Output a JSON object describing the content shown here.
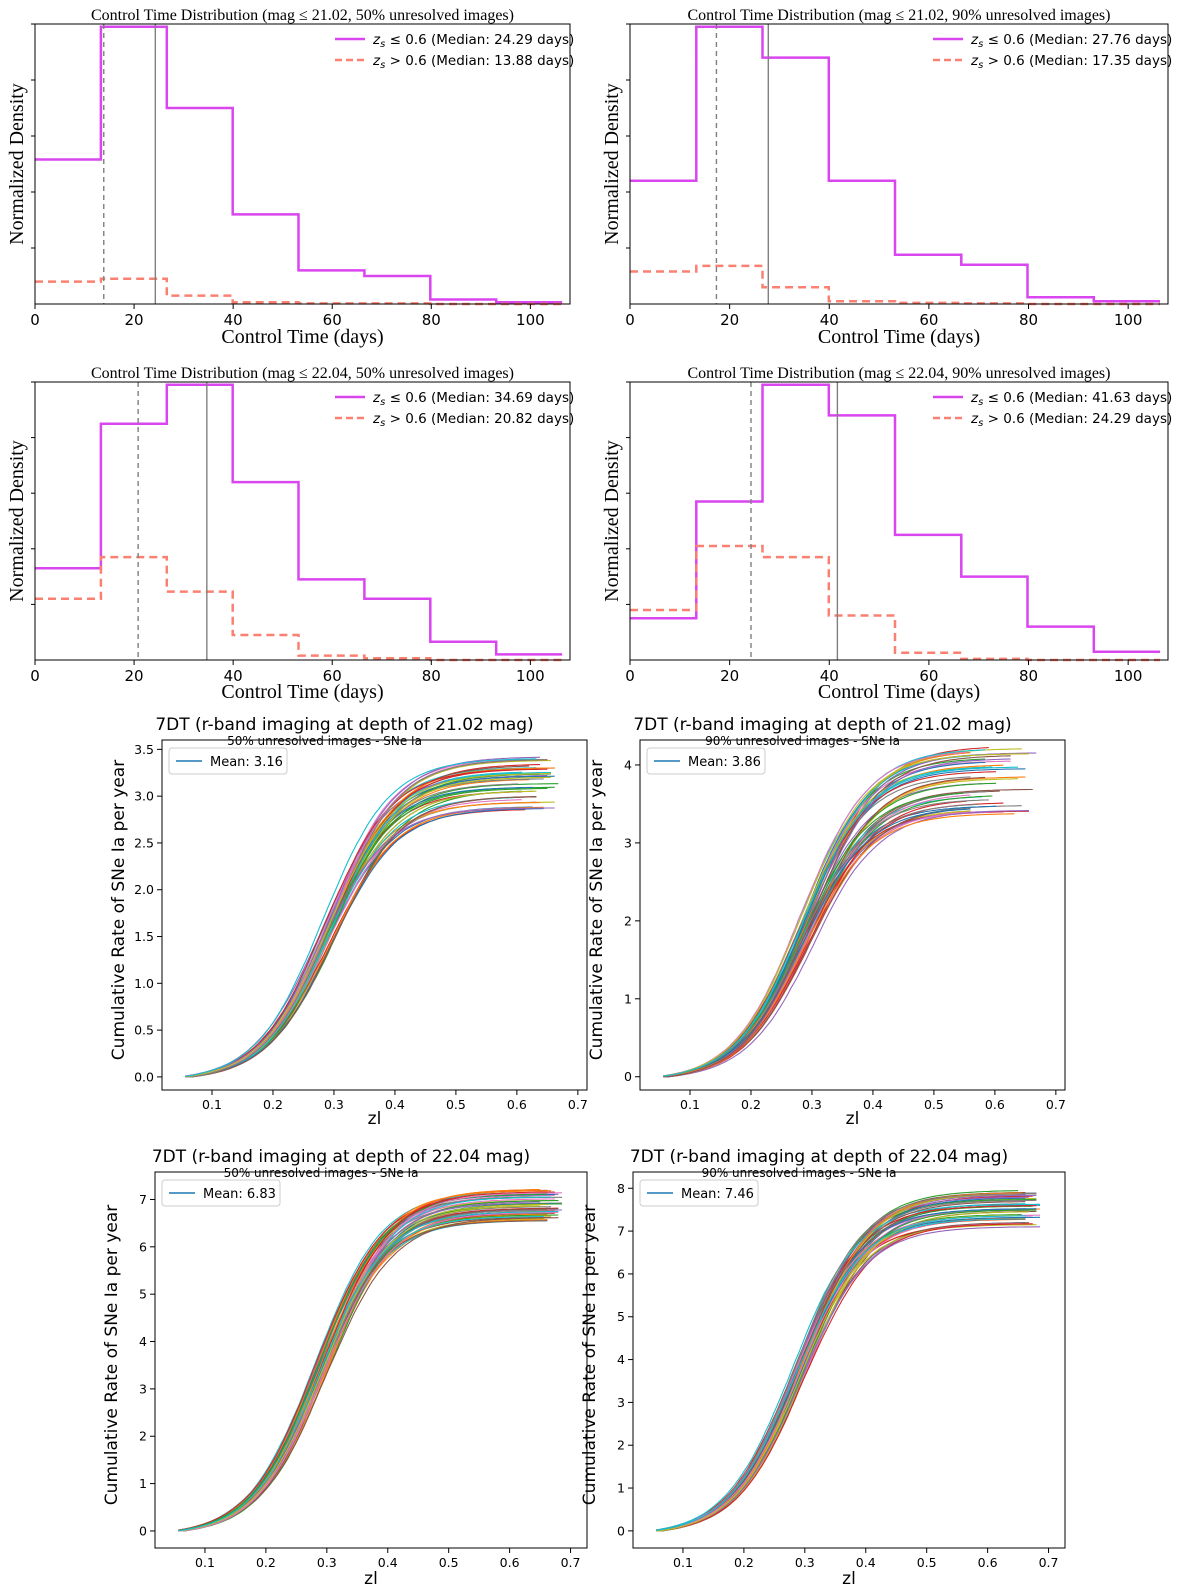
{
  "chart_data": [
    {
      "type": "step-histogram",
      "title": "Control Time Distribution (mag ≤ 21.02, 50% unresolved images)",
      "xlabel": "Control Time (days)",
      "ylabel": "Normalized Density",
      "xlim": [
        0,
        108
      ],
      "ylim": [
        0,
        0.05
      ],
      "xticks": [
        "0",
        "20",
        "40",
        "60",
        "80",
        "100"
      ],
      "bin_edges": [
        0,
        13.3,
        26.6,
        39.9,
        53.2,
        66.5,
        79.8,
        93.1,
        106.4
      ],
      "series": [
        {
          "name": "z_s ≤ 0.6 (Median: 24.29 days)",
          "style": "solid",
          "color": "#d946ef",
          "values": [
            0.0258,
            0.0495,
            0.035,
            0.016,
            0.006,
            0.005,
            0.0008,
            0.0003
          ]
        },
        {
          "name": "z_s > 0.6 (Median: 13.88 days)",
          "style": "dashed",
          "color": "#fa8072",
          "values": [
            0.004,
            0.0045,
            0.0015,
            0.0003,
            0.0001,
            0.0001,
            0.0,
            0.0
          ]
        }
      ],
      "vlines": [
        {
          "x": 13.88,
          "style": "dashed"
        },
        {
          "x": 24.29,
          "style": "solid"
        }
      ],
      "legend": [
        {
          "prefix": "z",
          "sub": "s",
          "rest": " ≤ 0.6 (Median: 24.29 days)"
        },
        {
          "prefix": "z",
          "sub": "s",
          "rest": " > 0.6 (Median: 13.88 days)"
        }
      ]
    },
    {
      "type": "step-histogram",
      "title": "Control Time Distribution (mag ≤ 21.02, 90% unresolved images)",
      "xlabel": "Control Time (days)",
      "ylabel": "Normalized Density",
      "xlim": [
        0,
        108
      ],
      "ylim": [
        0,
        0.05
      ],
      "xticks": [
        "0",
        "20",
        "40",
        "60",
        "80",
        "100"
      ],
      "bin_edges": [
        0,
        13.3,
        26.6,
        39.9,
        53.2,
        66.5,
        79.8,
        93.1,
        106.4
      ],
      "series": [
        {
          "name": "z_s ≤ 0.6 (Median: 27.76 days)",
          "style": "solid",
          "color": "#d946ef",
          "values": [
            0.022,
            0.0495,
            0.044,
            0.022,
            0.0088,
            0.007,
            0.0012,
            0.0005
          ]
        },
        {
          "name": "z_s > 0.6 (Median: 17.35 days)",
          "style": "dashed",
          "color": "#fa8072",
          "values": [
            0.0058,
            0.0068,
            0.003,
            0.0005,
            0.0002,
            0.0001,
            0.0,
            0.0
          ]
        }
      ],
      "vlines": [
        {
          "x": 17.35,
          "style": "dashed"
        },
        {
          "x": 27.76,
          "style": "solid"
        }
      ],
      "legend": [
        {
          "prefix": "z",
          "sub": "s",
          "rest": " ≤ 0.6 (Median: 27.76 days)"
        },
        {
          "prefix": "z",
          "sub": "s",
          "rest": " > 0.6 (Median: 17.35 days)"
        }
      ]
    },
    {
      "type": "step-histogram",
      "title": "Control Time Distribution (mag ≤ 22.04, 50% unresolved images)",
      "xlabel": "Control Time (days)",
      "ylabel": "Normalized Density",
      "xlim": [
        0,
        108
      ],
      "ylim": [
        0,
        0.05
      ],
      "xticks": [
        "0",
        "20",
        "40",
        "60",
        "80",
        "100"
      ],
      "bin_edges": [
        0,
        13.3,
        26.6,
        39.9,
        53.2,
        66.5,
        79.8,
        93.1,
        106.4
      ],
      "series": [
        {
          "name": "z_s ≤ 0.6 (Median: 34.69 days)",
          "style": "solid",
          "color": "#d946ef",
          "values": [
            0.0165,
            0.0425,
            0.0495,
            0.032,
            0.0145,
            0.011,
            0.0033,
            0.001
          ]
        },
        {
          "name": "z_s > 0.6 (Median: 20.82 days)",
          "style": "dashed",
          "color": "#fa8072",
          "values": [
            0.011,
            0.0185,
            0.0123,
            0.0045,
            0.0008,
            0.0003,
            0.0,
            0.0
          ]
        }
      ],
      "vlines": [
        {
          "x": 20.82,
          "style": "dashed"
        },
        {
          "x": 34.69,
          "style": "solid"
        }
      ],
      "legend": [
        {
          "prefix": "z",
          "sub": "s",
          "rest": " ≤ 0.6 (Median: 34.69 days)"
        },
        {
          "prefix": "z",
          "sub": "s",
          "rest": " > 0.6 (Median: 20.82 days)"
        }
      ]
    },
    {
      "type": "step-histogram",
      "title": "Control Time Distribution (mag ≤ 22.04, 90% unresolved images)",
      "xlabel": "Control Time (days)",
      "ylabel": "Normalized Density",
      "xlim": [
        0,
        108
      ],
      "ylim": [
        0,
        0.05
      ],
      "xticks": [
        "0",
        "20",
        "40",
        "60",
        "80",
        "100"
      ],
      "bin_edges": [
        0,
        13.3,
        26.6,
        39.9,
        53.2,
        66.5,
        79.8,
        93.1,
        106.4
      ],
      "series": [
        {
          "name": "z_s ≤ 0.6 (Median: 41.63 days)",
          "style": "solid",
          "color": "#d946ef",
          "values": [
            0.0075,
            0.0285,
            0.0495,
            0.044,
            0.0225,
            0.015,
            0.006,
            0.0015
          ]
        },
        {
          "name": "z_s > 0.6 (Median: 24.29 days)",
          "style": "dashed",
          "color": "#fa8072",
          "values": [
            0.009,
            0.0205,
            0.0185,
            0.008,
            0.0013,
            0.0002,
            0.0,
            0.0
          ]
        }
      ],
      "vlines": [
        {
          "x": 24.29,
          "style": "dashed"
        },
        {
          "x": 41.63,
          "style": "solid"
        }
      ],
      "legend": [
        {
          "prefix": "z",
          "sub": "s",
          "rest": " ≤ 0.6 (Median: 41.63 days)"
        },
        {
          "prefix": "z",
          "sub": "s",
          "rest": " > 0.6 (Median: 24.29 days)"
        }
      ]
    },
    {
      "type": "line",
      "title": "7DT (r-band imaging at depth of 21.02 mag)",
      "subtitle": "50% unresolved images - SNe Ia",
      "xlabel": "zl",
      "ylabel": "Cumulative Rate of SNe Ia per year",
      "xlim": [
        0.018,
        0.715
      ],
      "ylim": [
        -0.14,
        3.6
      ],
      "xticks": [
        "0.1",
        "0.2",
        "0.3",
        "0.4",
        "0.5",
        "0.6",
        "0.7"
      ],
      "yticks": [
        "0.0",
        "0.5",
        "1.0",
        "1.5",
        "2.0",
        "2.5",
        "3.0",
        "3.5"
      ],
      "legend_label": "Mean: 3.16",
      "mean": 3.16,
      "realizations": 50,
      "plateau_min": 2.85,
      "plateau_max": 3.42,
      "z_start": 0.056,
      "z_end_range": [
        0.6,
        0.67
      ]
    },
    {
      "type": "line",
      "title": "7DT (r-band imaging at depth of 21.02 mag)",
      "subtitle": "90% unresolved images - SNe Ia",
      "xlabel": "zl",
      "ylabel": "Cumulative Rate of SNe Ia per year",
      "xlim": [
        0.018,
        0.715
      ],
      "ylim": [
        -0.17,
        4.32
      ],
      "xticks": [
        "0.1",
        "0.2",
        "0.3",
        "0.4",
        "0.5",
        "0.6",
        "0.7"
      ],
      "yticks": [
        "0",
        "1",
        "2",
        "3",
        "4"
      ],
      "legend_label": "Mean: 3.86",
      "mean": 3.86,
      "realizations": 50,
      "plateau_min": 3.37,
      "plateau_max": 4.23,
      "z_start": 0.056,
      "z_end_range": [
        0.55,
        0.67
      ]
    },
    {
      "type": "line",
      "title": "7DT (r-band imaging at depth of 22.04 mag)",
      "subtitle": "50% unresolved images - SNe Ia",
      "xlabel": "zl",
      "ylabel": "Cumulative Rate of SNe Ia per year",
      "xlim": [
        0.018,
        0.727
      ],
      "ylim": [
        -0.36,
        7.58
      ],
      "xticks": [
        "0.1",
        "0.2",
        "0.3",
        "0.4",
        "0.5",
        "0.6",
        "0.7"
      ],
      "yticks": [
        "0",
        "1",
        "2",
        "3",
        "4",
        "5",
        "6",
        "7"
      ],
      "legend_label": "Mean: 6.83",
      "mean": 6.83,
      "realizations": 50,
      "plateau_min": 6.55,
      "plateau_max": 7.22,
      "z_start": 0.056,
      "z_end_range": [
        0.65,
        0.69
      ]
    },
    {
      "type": "line",
      "title": "7DT (r-band imaging at depth of 22.04 mag)",
      "subtitle": "90% unresolved images - SNe Ia",
      "xlabel": "zl",
      "ylabel": "Cumulative Rate of SNe Ia per year",
      "xlim": [
        0.018,
        0.727
      ],
      "ylim": [
        -0.4,
        8.38
      ],
      "xticks": [
        "0.1",
        "0.2",
        "0.3",
        "0.4",
        "0.5",
        "0.6",
        "0.7"
      ],
      "yticks": [
        "0",
        "1",
        "2",
        "3",
        "4",
        "5",
        "6",
        "7",
        "8"
      ],
      "legend_label": "Mean: 7.46",
      "mean": 7.46,
      "realizations": 50,
      "plateau_min": 7.1,
      "plateau_max": 7.95,
      "z_start": 0.056,
      "z_end_range": [
        0.65,
        0.69
      ]
    }
  ],
  "colors": {
    "low_z": "#d946ef",
    "high_z": "#fa8072",
    "median_line": "#7f7f7f",
    "mean_legend": "#1f77b4",
    "cycle": [
      "#1f77b4",
      "#ff7f0e",
      "#2ca02c",
      "#d62728",
      "#9467bd",
      "#8c564b",
      "#e377c2",
      "#7f7f7f",
      "#bcbd22",
      "#17becf"
    ]
  }
}
